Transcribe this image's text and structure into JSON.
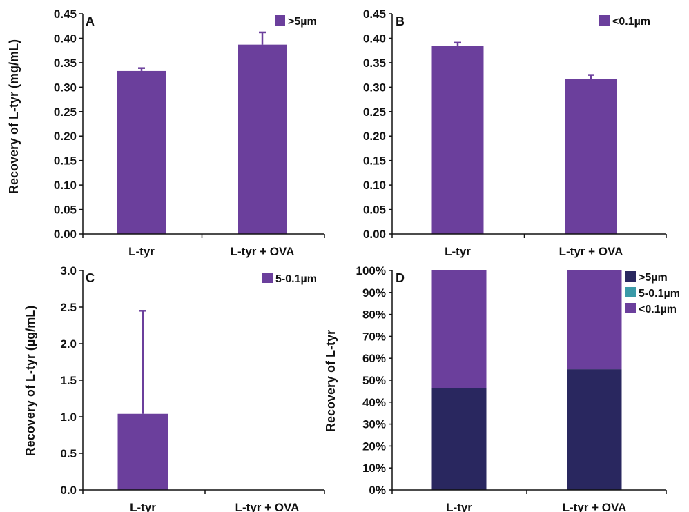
{
  "colors": {
    "purple": "#6b3f9c",
    "navy": "#29275f",
    "teal": "#3a9aa8",
    "axis": "#111111"
  },
  "chart_data": [
    {
      "panel": "A",
      "type": "bar",
      "categories": [
        "L-tyr",
        "L-tyr + OVA"
      ],
      "series": [
        {
          "name": ">5µm",
          "values": [
            0.333,
            0.387
          ],
          "errors": [
            0.006,
            0.025
          ]
        }
      ],
      "ylabel": "Recovery of L-tyr (mg/mL)",
      "ylim": [
        0,
        0.45
      ],
      "yticks": [
        "0.00",
        "0.05",
        "0.10",
        "0.15",
        "0.20",
        "0.25",
        "0.30",
        "0.35",
        "0.40",
        "0.45"
      ],
      "legend": "top-right"
    },
    {
      "panel": "B",
      "type": "bar",
      "categories": [
        "L-tyr",
        "L-tyr + OVA"
      ],
      "series": [
        {
          "name": "<0.1µm",
          "values": [
            0.385,
            0.317
          ],
          "errors": [
            0.006,
            0.008
          ]
        }
      ],
      "ylabel": "",
      "ylim": [
        0,
        0.45
      ],
      "yticks": [
        "0.00",
        "0.05",
        "0.10",
        "0.15",
        "0.20",
        "0.25",
        "0.30",
        "0.35",
        "0.40",
        "0.45"
      ],
      "legend": "top-right"
    },
    {
      "panel": "C",
      "type": "bar",
      "categories": [
        "L-tyr",
        "L-tyr + OVA"
      ],
      "series": [
        {
          "name": "5-0.1µm",
          "values": [
            1.04,
            0
          ],
          "errors": [
            1.41,
            0
          ]
        }
      ],
      "ylabel": "Recovery of L-tyr (µg/mL)",
      "ylim": [
        0,
        3.0
      ],
      "yticks": [
        "0.0",
        "0.5",
        "1.0",
        "1.5",
        "2.0",
        "2.5",
        "3.0"
      ],
      "legend": "top-right"
    },
    {
      "panel": "D",
      "type": "bar",
      "stacked": true,
      "percent": true,
      "categories": [
        "L-tyr",
        "L-tyr + OVA"
      ],
      "series": [
        {
          "name": ">5µm",
          "values": [
            46.4,
            55.0
          ]
        },
        {
          "name": "5-0.1µm",
          "values": [
            0,
            0
          ]
        },
        {
          "name": "<0.1µm",
          "values": [
            53.6,
            45.0
          ]
        }
      ],
      "ylabel": "Recovery of L-tyr",
      "ylim": [
        0,
        100
      ],
      "yticks": [
        "0%",
        "10%",
        "20%",
        "30%",
        "40%",
        "50%",
        "60%",
        "70%",
        "80%",
        "90%",
        "100%"
      ],
      "legend": "top-right"
    }
  ]
}
